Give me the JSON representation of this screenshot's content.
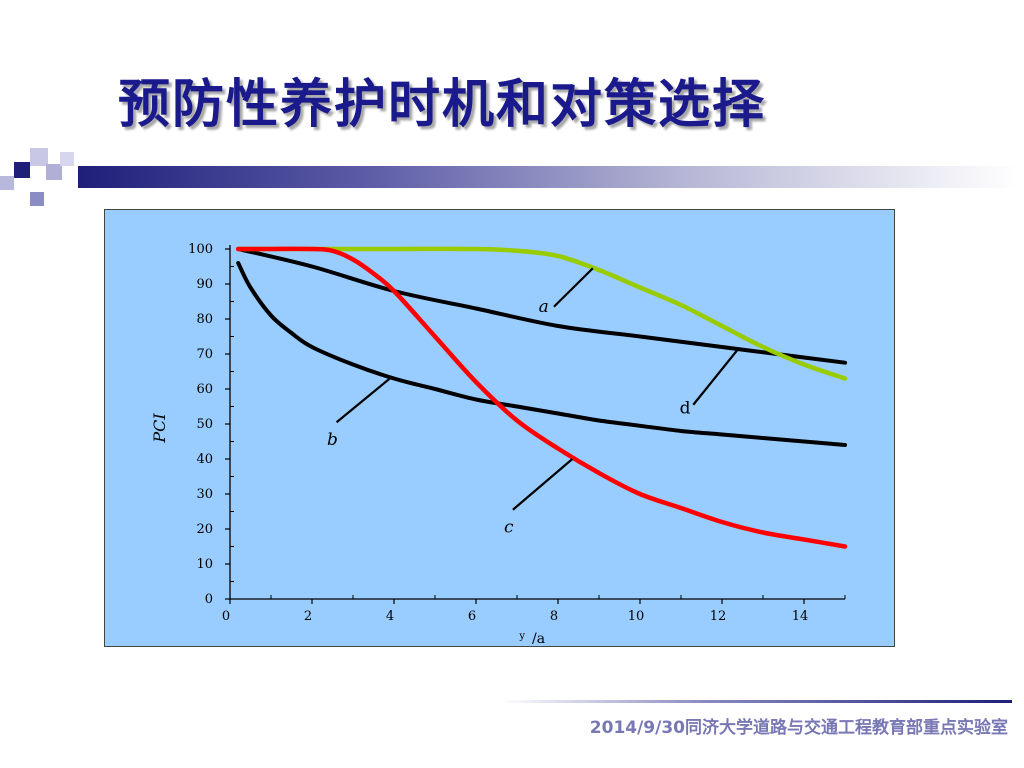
{
  "slide": {
    "title": "预防性养护时机和对策选择",
    "footer": "2014/9/30同济大学道路与交通工程教育部重点实验室"
  },
  "colors": {
    "title": "#1a1a8c",
    "panel_bg": "#99ccff",
    "curve_a": "#99cc00",
    "curve_b": "#000000",
    "curve_c": "#ff0000",
    "curve_d": "#000000"
  },
  "chart_data": {
    "type": "line",
    "ylabel": "PCI",
    "xlabel_super": "y",
    "xlabel": "/a",
    "xlim": [
      0,
      15
    ],
    "ylim": [
      0,
      100
    ],
    "x_ticks": [
      0,
      2,
      4,
      6,
      8,
      10,
      12,
      14
    ],
    "y_ticks": [
      0,
      10,
      20,
      30,
      40,
      50,
      60,
      70,
      80,
      90,
      100
    ],
    "grid": false,
    "series": [
      {
        "name": "a",
        "color": "#99cc00",
        "x": [
          0.2,
          2,
          4,
          6,
          7,
          8,
          9,
          10,
          11,
          12,
          13,
          14,
          15
        ],
        "y": [
          100,
          100,
          100,
          100,
          99.5,
          98,
          94,
          89,
          84,
          78,
          72,
          67,
          63
        ]
      },
      {
        "name": "b",
        "color": "#000000",
        "x": [
          0.2,
          0.5,
          1,
          1.5,
          2,
          3,
          4,
          5,
          6,
          7,
          8,
          9,
          10,
          11,
          12,
          13,
          14,
          15
        ],
        "y": [
          96,
          89,
          81,
          76,
          72,
          67,
          63,
          60,
          57,
          55,
          53,
          51,
          49.5,
          48,
          47,
          46,
          45,
          44
        ]
      },
      {
        "name": "c",
        "color": "#ff0000",
        "x": [
          0.2,
          1,
          2,
          2.5,
          3,
          3.5,
          4,
          5,
          6,
          7,
          8,
          9,
          10,
          11,
          12,
          13,
          14,
          15
        ],
        "y": [
          100,
          100,
          100,
          99.5,
          97,
          93,
          88,
          75,
          62,
          51,
          43,
          36,
          30,
          26,
          22,
          19,
          17,
          15
        ]
      },
      {
        "name": "d",
        "color": "#000000",
        "x": [
          0.2,
          2,
          4,
          6,
          8,
          10,
          12,
          14,
          15
        ],
        "y": [
          100,
          95,
          88,
          83,
          78,
          75,
          72,
          69,
          67.5
        ]
      }
    ],
    "annotations": [
      {
        "text": "a",
        "series": "a",
        "leader_from": [
          8.85,
          94.5
        ],
        "leader_to": [
          7.9,
          83.5
        ],
        "label_at": [
          7.65,
          82
        ],
        "italic": true
      },
      {
        "text": "b",
        "series": "b",
        "leader_from": [
          3.95,
          63.5
        ],
        "leader_to": [
          2.6,
          50.5
        ],
        "label_at": [
          2.5,
          44
        ],
        "italic": true
      },
      {
        "text": "c",
        "series": "c",
        "leader_from": [
          8.35,
          40
        ],
        "leader_to": [
          6.9,
          25.5
        ],
        "label_at": [
          6.8,
          19
        ],
        "italic": true
      },
      {
        "text": "d",
        "series": "d",
        "leader_from": [
          12.4,
          71.5
        ],
        "leader_to": [
          11.3,
          55.5
        ],
        "label_at": [
          11.1,
          53
        ],
        "italic": false
      }
    ]
  }
}
